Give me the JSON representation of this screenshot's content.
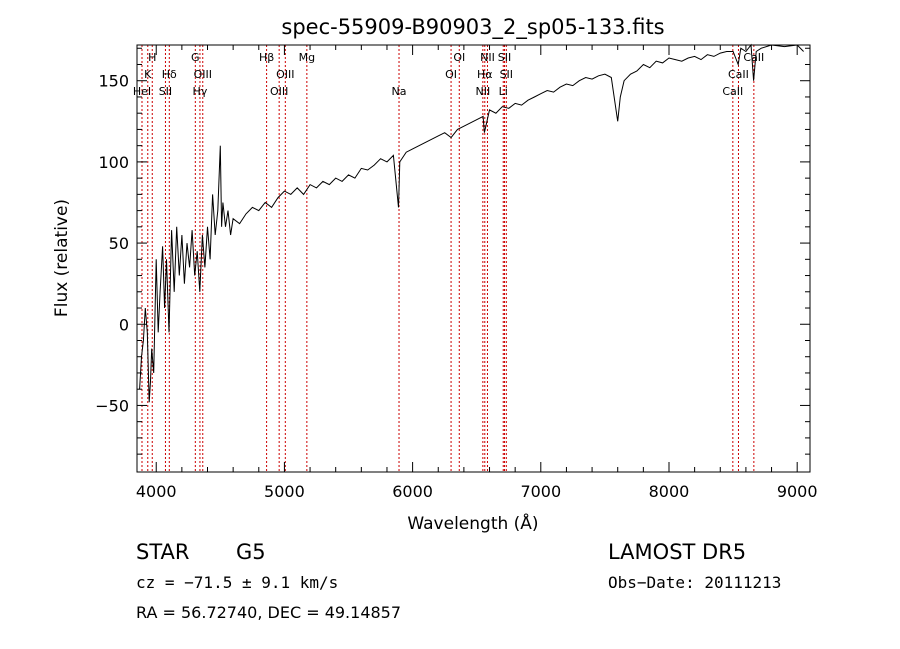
{
  "chart_data": {
    "type": "line",
    "title": "spec-55909-B90903_2_sp05-133.fits",
    "xlabel": "Wavelength (Å)",
    "ylabel": "Flux (relative)",
    "xlim": [
      3850,
      9100
    ],
    "ylim": [
      -91,
      172
    ],
    "xticks": [
      4000,
      5000,
      6000,
      7000,
      8000,
      9000
    ],
    "yticks": [
      -50,
      0,
      50,
      100,
      150
    ],
    "grid": false,
    "line_color": "#000000",
    "marker_color": "#cc0000",
    "spectrum": [
      [
        3870,
        -40
      ],
      [
        3885,
        -20
      ],
      [
        3900,
        -10
      ],
      [
        3915,
        10
      ],
      [
        3930,
        -5
      ],
      [
        3945,
        -48
      ],
      [
        3955,
        -35
      ],
      [
        3965,
        -15
      ],
      [
        3980,
        -30
      ],
      [
        4000,
        40
      ],
      [
        4015,
        -5
      ],
      [
        4030,
        20
      ],
      [
        4050,
        48
      ],
      [
        4065,
        10
      ],
      [
        4080,
        40
      ],
      [
        4100,
        -5
      ],
      [
        4120,
        58
      ],
      [
        4140,
        20
      ],
      [
        4160,
        60
      ],
      [
        4180,
        30
      ],
      [
        4200,
        55
      ],
      [
        4220,
        25
      ],
      [
        4240,
        50
      ],
      [
        4260,
        35
      ],
      [
        4280,
        58
      ],
      [
        4300,
        30
      ],
      [
        4320,
        45
      ],
      [
        4340,
        20
      ],
      [
        4360,
        55
      ],
      [
        4380,
        35
      ],
      [
        4400,
        60
      ],
      [
        4420,
        40
      ],
      [
        4440,
        80
      ],
      [
        4460,
        55
      ],
      [
        4480,
        70
      ],
      [
        4500,
        110
      ],
      [
        4510,
        60
      ],
      [
        4520,
        75
      ],
      [
        4540,
        60
      ],
      [
        4560,
        70
      ],
      [
        4580,
        55
      ],
      [
        4600,
        65
      ],
      [
        4650,
        62
      ],
      [
        4700,
        68
      ],
      [
        4750,
        72
      ],
      [
        4800,
        70
      ],
      [
        4850,
        75
      ],
      [
        4900,
        72
      ],
      [
        4950,
        78
      ],
      [
        5000,
        82
      ],
      [
        5050,
        80
      ],
      [
        5100,
        84
      ],
      [
        5150,
        80
      ],
      [
        5200,
        86
      ],
      [
        5250,
        84
      ],
      [
        5300,
        88
      ],
      [
        5350,
        86
      ],
      [
        5400,
        90
      ],
      [
        5450,
        88
      ],
      [
        5500,
        92
      ],
      [
        5550,
        90
      ],
      [
        5600,
        96
      ],
      [
        5650,
        95
      ],
      [
        5700,
        98
      ],
      [
        5750,
        102
      ],
      [
        5800,
        100
      ],
      [
        5850,
        104
      ],
      [
        5890,
        72
      ],
      [
        5900,
        100
      ],
      [
        5950,
        106
      ],
      [
        6000,
        108
      ],
      [
        6050,
        110
      ],
      [
        6100,
        112
      ],
      [
        6150,
        114
      ],
      [
        6200,
        116
      ],
      [
        6250,
        118
      ],
      [
        6300,
        115
      ],
      [
        6350,
        120
      ],
      [
        6400,
        122
      ],
      [
        6450,
        124
      ],
      [
        6500,
        126
      ],
      [
        6550,
        128
      ],
      [
        6560,
        118
      ],
      [
        6600,
        132
      ],
      [
        6650,
        130
      ],
      [
        6700,
        134
      ],
      [
        6750,
        133
      ],
      [
        6800,
        136
      ],
      [
        6850,
        135
      ],
      [
        6900,
        138
      ],
      [
        6950,
        140
      ],
      [
        7000,
        142
      ],
      [
        7050,
        144
      ],
      [
        7100,
        143
      ],
      [
        7150,
        146
      ],
      [
        7200,
        148
      ],
      [
        7250,
        147
      ],
      [
        7300,
        150
      ],
      [
        7350,
        152
      ],
      [
        7400,
        151
      ],
      [
        7450,
        153
      ],
      [
        7500,
        154
      ],
      [
        7550,
        152
      ],
      [
        7600,
        125
      ],
      [
        7620,
        140
      ],
      [
        7650,
        150
      ],
      [
        7700,
        154
      ],
      [
        7750,
        156
      ],
      [
        7800,
        160
      ],
      [
        7850,
        158
      ],
      [
        7900,
        162
      ],
      [
        7950,
        161
      ],
      [
        8000,
        164
      ],
      [
        8050,
        163
      ],
      [
        8100,
        162
      ],
      [
        8150,
        164
      ],
      [
        8200,
        165
      ],
      [
        8250,
        163
      ],
      [
        8300,
        166
      ],
      [
        8350,
        165
      ],
      [
        8400,
        167
      ],
      [
        8450,
        168
      ],
      [
        8500,
        168
      ],
      [
        8540,
        160
      ],
      [
        8560,
        170
      ],
      [
        8600,
        168
      ],
      [
        8640,
        172
      ],
      [
        8660,
        150
      ],
      [
        8680,
        168
      ],
      [
        8720,
        170
      ],
      [
        8800,
        172
      ],
      [
        8900,
        171
      ],
      [
        9000,
        172
      ],
      [
        9050,
        168
      ]
    ],
    "lines": [
      {
        "wl": 3889,
        "row": 2,
        "label": "HeI"
      },
      {
        "wl": 3934,
        "row": 1,
        "label": "K"
      },
      {
        "wl": 3969,
        "row": 0,
        "label": "H"
      },
      {
        "wl": 4072,
        "row": 2,
        "label": "SII"
      },
      {
        "wl": 4102,
        "row": 1,
        "label": "Hδ"
      },
      {
        "wl": 4305,
        "row": 0,
        "label": "G"
      },
      {
        "wl": 4341,
        "row": 2,
        "label": "Hγ"
      },
      {
        "wl": 4363,
        "row": 1,
        "label": "OIII"
      },
      {
        "wl": 4861,
        "row": 0,
        "label": "Hβ"
      },
      {
        "wl": 4959,
        "row": 2,
        "label": "OIII"
      },
      {
        "wl": 5007,
        "row": 1,
        "label": "OIII"
      },
      {
        "wl": 5175,
        "row": 0,
        "label": "Mg"
      },
      {
        "wl": 5894,
        "row": 2,
        "label": "Na"
      },
      {
        "wl": 6300,
        "row": 1,
        "label": "OI"
      },
      {
        "wl": 6364,
        "row": 0,
        "label": "OI"
      },
      {
        "wl": 6548,
        "row": 2,
        "label": "NII"
      },
      {
        "wl": 6563,
        "row": 1,
        "label": "Hα"
      },
      {
        "wl": 6584,
        "row": 0,
        "label": "NII"
      },
      {
        "wl": 6707,
        "row": 2,
        "label": "Li"
      },
      {
        "wl": 6717,
        "row": 0,
        "label": "SII"
      },
      {
        "wl": 6731,
        "row": 1,
        "label": "SII"
      },
      {
        "wl": 8498,
        "row": 2,
        "label": "CaII"
      },
      {
        "wl": 8542,
        "row": 1,
        "label": "CaII"
      },
      {
        "wl": 8662,
        "row": 0,
        "label": "CaII"
      }
    ]
  },
  "info": {
    "class": "STAR",
    "subclass": "G5",
    "survey": "LAMOST  DR5",
    "velocity": "cz = −71.5 ± 9.1 km/s",
    "obsdate": "Obs−Date: 20111213",
    "coords": "RA =  56.72740, DEC =  49.14857"
  }
}
